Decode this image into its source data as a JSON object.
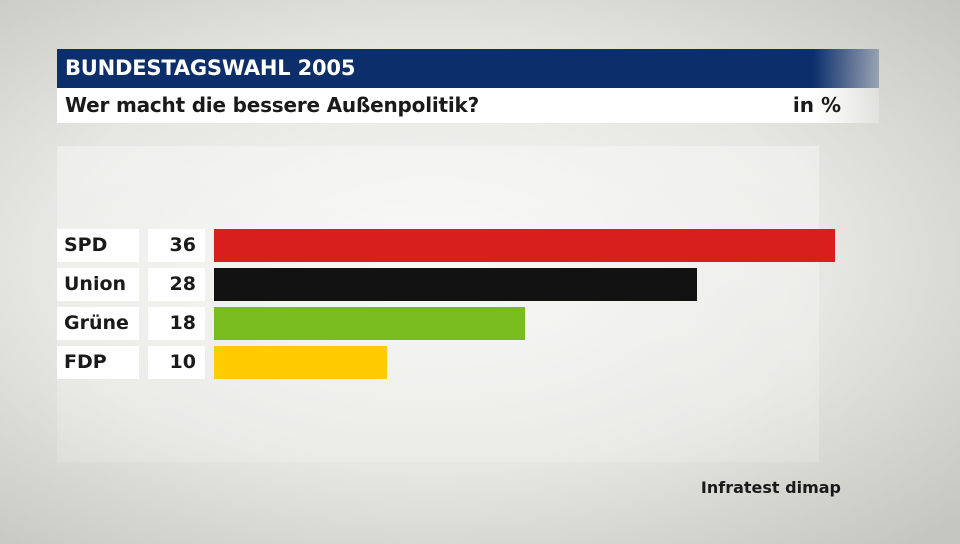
{
  "header": {
    "title": "BUNDESTAGSWAHL 2005",
    "subtitle": "Wer macht die bessere Außenpolitik?",
    "unit": "in %"
  },
  "source": "Infratest dimap",
  "chart_data": {
    "type": "bar",
    "orientation": "horizontal",
    "title": "BUNDESTAGSWAHL 2005",
    "subtitle": "Wer macht die bessere Außenpolitik?",
    "unit": "in %",
    "categories": [
      "SPD",
      "Union",
      "Grüne",
      "FDP"
    ],
    "values": [
      36,
      28,
      18,
      10
    ],
    "colors": [
      "#d91e1e",
      "#121212",
      "#78bc1e",
      "#ffcc00"
    ],
    "xlim": [
      0,
      36
    ],
    "grid": false,
    "legend": "none"
  }
}
